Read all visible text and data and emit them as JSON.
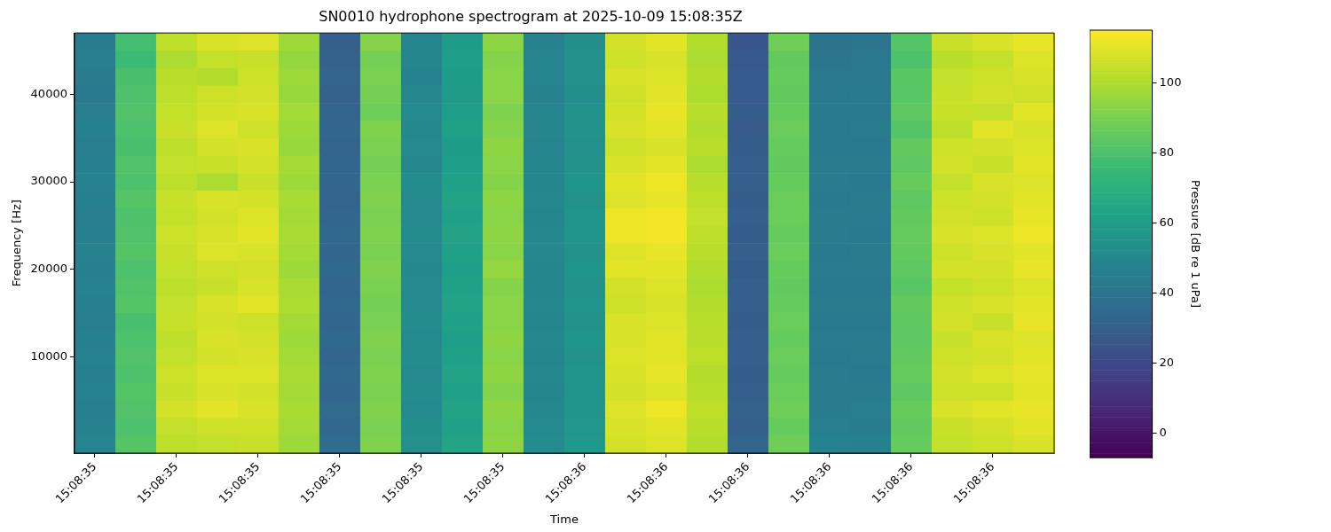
{
  "chart_data": {
    "type": "heatmap",
    "title": "SN0010 hydrophone spectrogram at 2025-10-09 15:08:35Z",
    "xlabel": "Time",
    "ylabel": "Frequency [Hz]",
    "clabel": "Pressure [dB re 1 uPa]",
    "categories": [
      "15:08:35",
      null,
      "15:08:35",
      null,
      "15:08:35",
      null,
      "15:08:35",
      null,
      "15:08:35",
      null,
      "15:08:35",
      null,
      "15:08:36",
      null,
      "15:08:36",
      null,
      "15:08:36",
      null,
      "15:08:36",
      null,
      "15:08:36",
      null,
      "15:08:36",
      null
    ],
    "y_categories": [
      null,
      null,
      null,
      "40000",
      null,
      null,
      null,
      null,
      "30000",
      null,
      null,
      null,
      null,
      "20000",
      null,
      null,
      null,
      null,
      "10000",
      null,
      null,
      null,
      null,
      null
    ],
    "cells": [
      [
        44,
        78,
        103,
        108,
        109,
        97,
        30,
        92,
        48,
        60,
        94,
        47,
        53,
        107,
        110,
        101,
        26,
        88,
        40,
        41,
        82,
        105,
        108,
        111
      ],
      [
        45,
        76,
        100,
        104,
        105,
        95,
        31,
        89,
        49,
        61,
        92,
        48,
        54,
        106,
        108,
        100,
        27,
        85,
        41,
        42,
        80,
        102,
        104,
        109
      ],
      [
        44,
        79,
        102,
        101,
        106,
        97,
        32,
        90,
        47,
        60,
        93,
        48,
        54,
        108,
        109,
        101,
        28,
        86,
        42,
        42,
        83,
        104,
        106,
        108
      ],
      [
        43,
        80,
        103,
        106,
        107,
        96,
        31,
        89,
        50,
        59,
        93,
        47,
        53,
        106,
        110,
        100,
        28,
        85,
        42,
        43,
        83,
        105,
        107,
        106
      ],
      [
        45,
        81,
        104,
        107,
        108,
        98,
        32,
        88,
        51,
        61,
        91,
        48,
        55,
        107,
        111,
        102,
        29,
        86,
        43,
        43,
        84,
        105,
        104,
        110
      ],
      [
        46,
        80,
        105,
        109,
        106,
        97,
        33,
        91,
        50,
        62,
        92,
        49,
        55,
        108,
        110,
        101,
        28,
        87,
        43,
        44,
        82,
        103,
        110,
        108
      ],
      [
        45,
        79,
        103,
        107,
        108,
        96,
        32,
        90,
        51,
        60,
        94,
        48,
        54,
        106,
        108,
        102,
        29,
        86,
        43,
        43,
        85,
        106,
        107,
        109
      ],
      [
        46,
        81,
        104,
        105,
        107,
        98,
        33,
        89,
        50,
        61,
        93,
        49,
        55,
        108,
        110,
        100,
        30,
        85,
        44,
        44,
        84,
        107,
        105,
        110
      ],
      [
        47,
        80,
        103,
        100,
        105,
        97,
        33,
        90,
        52,
        62,
        92,
        49,
        56,
        110,
        112,
        102,
        30,
        86,
        44,
        43,
        86,
        104,
        108,
        109
      ],
      [
        46,
        82,
        105,
        108,
        107,
        99,
        32,
        91,
        51,
        63,
        94,
        50,
        55,
        109,
        111,
        103,
        29,
        87,
        43,
        44,
        84,
        106,
        107,
        110
      ],
      [
        45,
        80,
        104,
        107,
        109,
        98,
        33,
        90,
        51,
        62,
        93,
        49,
        56,
        112,
        113,
        104,
        30,
        87,
        44,
        44,
        85,
        107,
        106,
        111
      ],
      [
        46,
        81,
        106,
        108,
        110,
        99,
        34,
        91,
        52,
        63,
        94,
        50,
        56,
        112,
        113,
        103,
        29,
        86,
        44,
        43,
        86,
        108,
        109,
        112
      ],
      [
        47,
        82,
        105,
        109,
        108,
        98,
        33,
        90,
        51,
        62,
        93,
        50,
        55,
        109,
        111,
        102,
        30,
        87,
        43,
        44,
        85,
        106,
        108,
        110
      ],
      [
        46,
        80,
        104,
        106,
        107,
        97,
        34,
        91,
        50,
        61,
        95,
        49,
        56,
        110,
        110,
        101,
        29,
        86,
        44,
        44,
        84,
        107,
        107,
        111
      ],
      [
        47,
        81,
        103,
        105,
        108,
        99,
        33,
        90,
        51,
        62,
        92,
        49,
        55,
        107,
        109,
        100,
        30,
        85,
        43,
        43,
        83,
        104,
        106,
        109
      ],
      [
        46,
        82,
        104,
        108,
        110,
        100,
        34,
        89,
        51,
        63,
        93,
        50,
        56,
        106,
        108,
        101,
        30,
        86,
        44,
        44,
        85,
        106,
        108,
        110
      ],
      [
        45,
        79,
        105,
        107,
        106,
        98,
        33,
        90,
        52,
        62,
        93,
        49,
        55,
        108,
        109,
        102,
        29,
        87,
        43,
        43,
        84,
        107,
        105,
        111
      ],
      [
        46,
        80,
        103,
        108,
        107,
        97,
        34,
        91,
        51,
        61,
        94,
        50,
        56,
        108,
        110,
        102,
        30,
        86,
        44,
        44,
        84,
        105,
        108,
        109
      ],
      [
        47,
        81,
        104,
        107,
        108,
        98,
        33,
        90,
        52,
        62,
        93,
        49,
        55,
        109,
        110,
        103,
        30,
        87,
        43,
        44,
        85,
        106,
        107,
        110
      ],
      [
        46,
        80,
        106,
        109,
        109,
        99,
        34,
        91,
        51,
        63,
        94,
        50,
        56,
        108,
        111,
        101,
        29,
        86,
        44,
        43,
        86,
        107,
        109,
        111
      ],
      [
        47,
        82,
        105,
        108,
        107,
        98,
        33,
        90,
        52,
        62,
        92,
        49,
        56,
        107,
        109,
        102,
        30,
        87,
        44,
        44,
        84,
        106,
        106,
        110
      ],
      [
        46,
        81,
        107,
        110,
        108,
        99,
        35,
        91,
        51,
        63,
        94,
        50,
        56,
        109,
        112,
        103,
        31,
        88,
        44,
        45,
        86,
        108,
        110,
        111
      ],
      [
        47,
        80,
        104,
        106,
        106,
        98,
        34,
        90,
        53,
        62,
        93,
        51,
        57,
        108,
        110,
        102,
        30,
        86,
        45,
        44,
        85,
        105,
        107,
        110
      ],
      [
        48,
        82,
        103,
        104,
        105,
        97,
        36,
        91,
        54,
        64,
        94,
        52,
        58,
        107,
        109,
        101,
        32,
        88,
        47,
        46,
        86,
        104,
        106,
        108
      ]
    ],
    "clim": [
      -7,
      115
    ],
    "cticks": [
      0,
      20,
      40,
      60,
      80,
      100
    ]
  }
}
